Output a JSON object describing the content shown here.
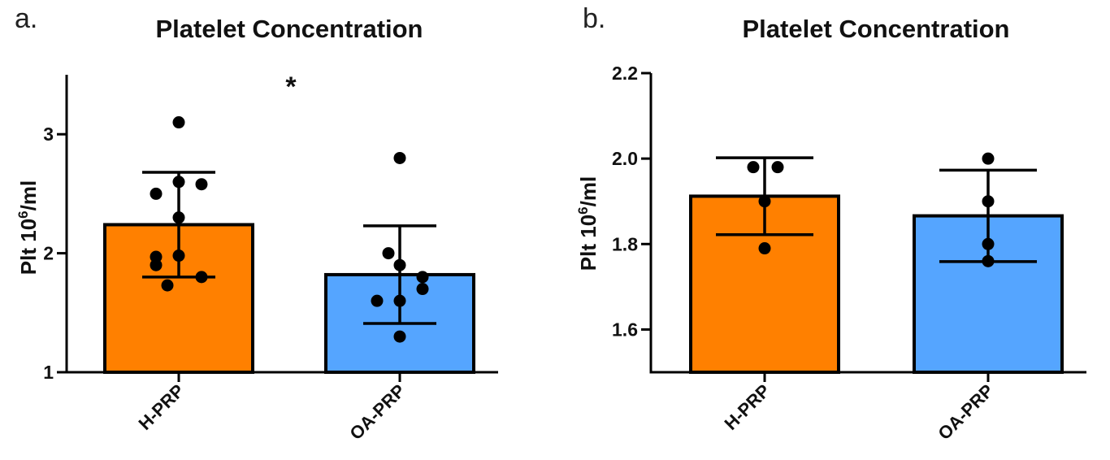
{
  "chart_data": [
    {
      "type": "bar",
      "panel_letter": "a.",
      "title": "Platelet Concentration",
      "ylabel": "Plt 10",
      "ylabel_sup": "6",
      "ylabel_suffix": "/ml",
      "categories": [
        "H-PRP",
        "OA-PRP"
      ],
      "values": [
        2.24,
        1.82
      ],
      "sd": [
        0.44,
        0.41
      ],
      "points": [
        [
          3.1,
          2.5,
          2.6,
          2.58,
          2.3,
          1.97,
          1.98,
          1.9,
          1.8,
          1.73
        ],
        [
          2.8,
          2.0,
          1.9,
          1.8,
          1.6,
          1.7,
          1.6,
          1.3
        ]
      ],
      "ylim": [
        1,
        3.5
      ],
      "yticks": [
        "1",
        "2",
        "3"
      ],
      "significance": "*",
      "grid": false,
      "colors": [
        "#FF8000",
        "#55A5FF"
      ]
    },
    {
      "type": "bar",
      "panel_letter": "b.",
      "title": "Platelet Concentration",
      "ylabel": "Plt 10",
      "ylabel_sup": "6",
      "ylabel_suffix": "/ml",
      "categories": [
        "H-PRP",
        "OA-PRP"
      ],
      "values": [
        1.912,
        1.866
      ],
      "sd": [
        0.09,
        0.107
      ],
      "points": [
        [
          1.98,
          1.98,
          1.9,
          1.79
        ],
        [
          2.0,
          1.9,
          1.8,
          1.76
        ]
      ],
      "ylim": [
        1.5,
        2.2
      ],
      "yticks": [
        "1.6",
        "1.8",
        "2.0",
        "2.2"
      ],
      "grid": false,
      "colors": [
        "#FF8000",
        "#55A5FF"
      ]
    }
  ]
}
